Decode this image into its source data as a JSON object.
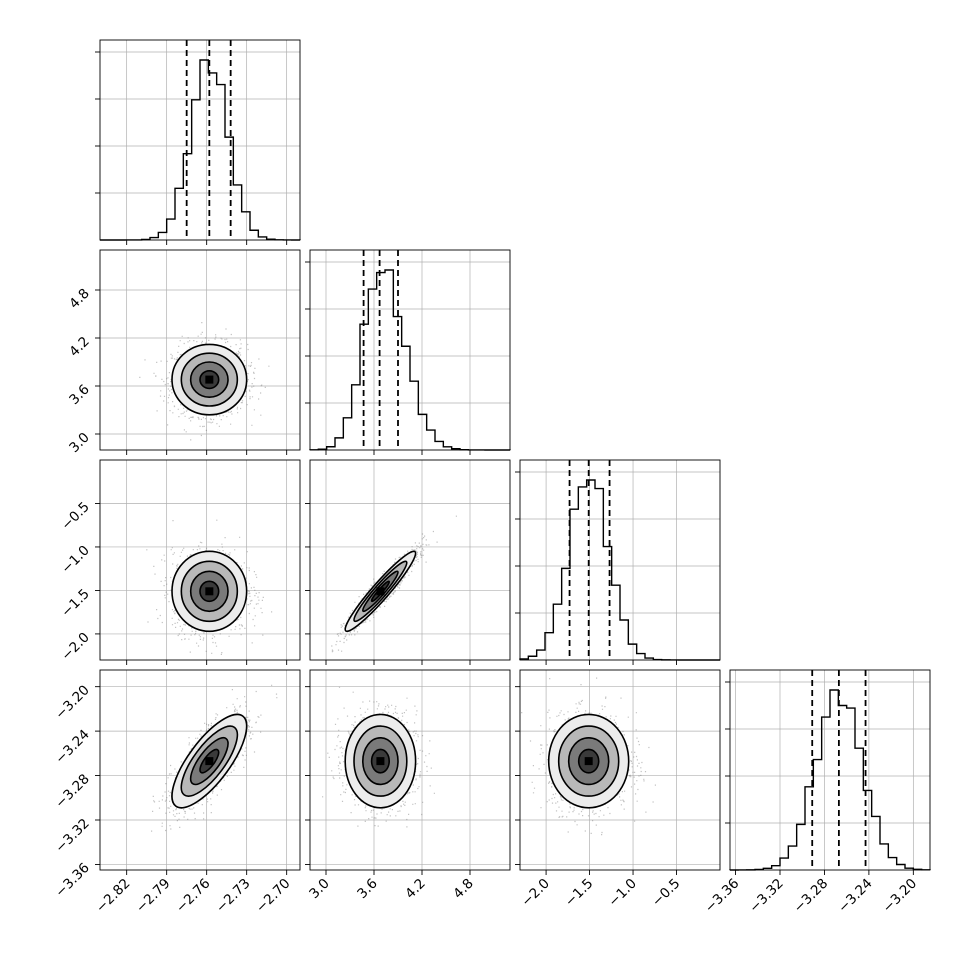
{
  "chart_data": {
    "type": "scatter",
    "title": "",
    "xlabel": "",
    "ylabel": "",
    "n_params": 4,
    "ranges": [
      [
        -2.84,
        -2.69
      ],
      [
        2.8,
        5.3
      ],
      [
        -2.3,
        0.0
      ],
      [
        -3.365,
        -3.185
      ]
    ],
    "ticks": [
      [
        "-2.82",
        "-2.79",
        "-2.76",
        "-2.73",
        "-2.70"
      ],
      [
        "3.0",
        "3.6",
        "4.2",
        "4.8"
      ],
      [
        "-2.0",
        "-1.5",
        "-1.0",
        "-0.5"
      ],
      [
        "-3.36",
        "-3.32",
        "-3.28",
        "-3.24",
        "-3.20"
      ]
    ],
    "quantiles": [
      [
        -2.775,
        -2.758,
        -2.742
      ],
      [
        3.47,
        3.67,
        3.9
      ],
      [
        -1.73,
        -1.51,
        -1.27
      ],
      [
        -3.291,
        -3.267,
        -3.243
      ]
    ],
    "mean": [
      -2.758,
      3.68,
      -1.51,
      -3.267
    ],
    "sigma": [
      0.014,
      0.22,
      0.23,
      0.021
    ],
    "correlations": {
      "0-1": 0.0,
      "0-2": 0.0,
      "1-2": 0.95,
      "0-3": 0.75,
      "1-3": 0.0,
      "2-3": 0.0
    },
    "grid": true,
    "grid_color": "#b0b0b0"
  }
}
